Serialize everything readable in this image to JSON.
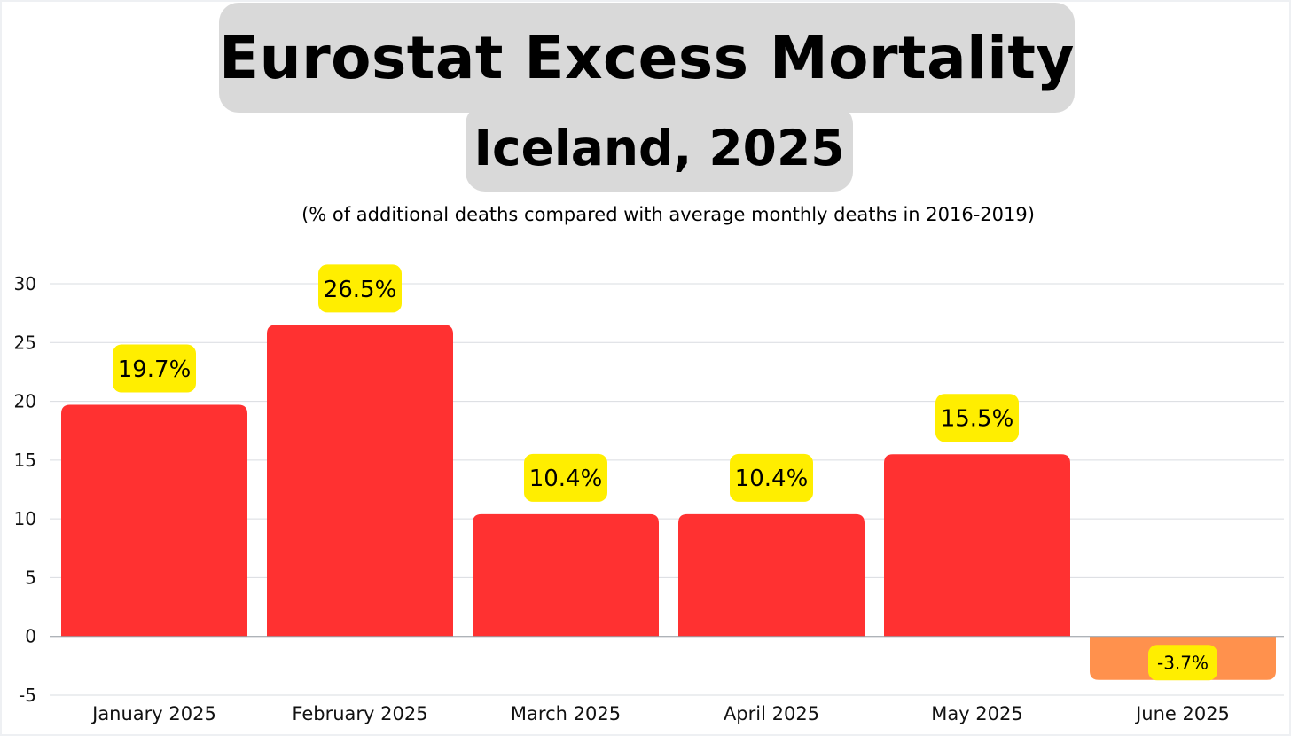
{
  "chart_data": {
    "type": "bar",
    "title": "Eurostat Excess Mortality",
    "subtitle": "Iceland, 2025",
    "note": "(% of additional deaths compared with average monthly deaths in 2016-2019)",
    "xlabel": "",
    "ylabel": "",
    "categories": [
      "January 2025",
      "February 2025",
      "March 2025",
      "April 2025",
      "May 2025",
      "June 2025"
    ],
    "values": [
      19.7,
      26.5,
      10.4,
      10.4,
      15.5,
      -3.7
    ],
    "data_labels": [
      "19.7%",
      "26.5%",
      "10.4%",
      "10.4%",
      "15.5%",
      "-3.7%"
    ],
    "ylim": [
      -5,
      30
    ],
    "yticks": [
      30,
      25,
      20,
      15,
      10,
      5,
      0,
      -5
    ],
    "grid": true,
    "legend": "none",
    "colors": {
      "positive_bar": "#ff3131",
      "negative_bar": "#ff914d",
      "label_highlight": "#ffee00",
      "title_background": "#d9d9d9",
      "gridline": "#d9dce1"
    }
  }
}
